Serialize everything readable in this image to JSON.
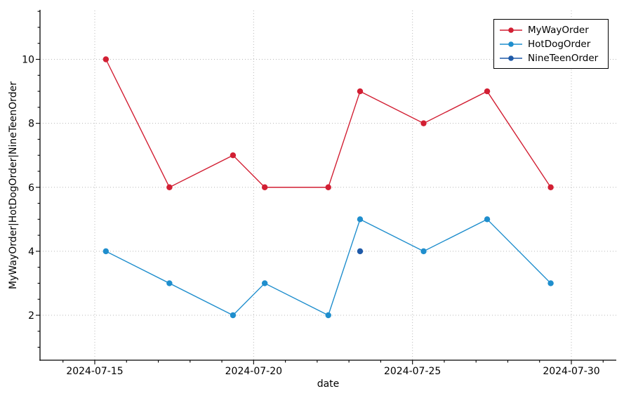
{
  "figure": {
    "xlabel": "date",
    "ylabel": "MyWayOrder|HotDogOrder|NineTeenOrder"
  },
  "legend": {
    "position": "upper right",
    "entries": [
      "MyWayOrder",
      "HotDogOrder",
      "NineTeenOrder"
    ]
  },
  "chart_data": {
    "type": "line",
    "title": "",
    "xlabel": "date",
    "ylabel": "MyWayOrder|HotDogOrder|NineTeenOrder",
    "x": [
      "2024-07-15",
      "2024-07-17",
      "2024-07-19",
      "2024-07-20",
      "2024-07-22",
      "2024-07-23",
      "2024-07-25",
      "2024-07-27",
      "2024-07-29"
    ],
    "series": [
      {
        "name": "MyWayOrder",
        "color": "#d21f33",
        "marker": "circle",
        "values": [
          10,
          6,
          7,
          6,
          6,
          9,
          8,
          9,
          6
        ]
      },
      {
        "name": "HotDogOrder",
        "color": "#1f8ecd",
        "marker": "circle",
        "values": [
          4,
          3,
          2,
          3,
          2,
          5,
          4,
          5,
          3
        ]
      },
      {
        "name": "NineTeenOrder",
        "color": "#1f5aa8",
        "marker": "circle",
        "values": [
          null,
          null,
          null,
          null,
          null,
          4,
          null,
          null,
          null
        ]
      }
    ],
    "x_tick_labels": [
      "2024-07-15",
      "2024-07-20",
      "2024-07-25",
      "2024-07-30"
    ],
    "y_tick_labels": [
      2,
      4,
      6,
      8,
      10
    ],
    "ylim": [
      0.6,
      11.53
    ],
    "xlim": [
      "2024-07-13",
      "2024-07-31"
    ],
    "grid": true,
    "grid_style": "dotted",
    "legend_position": "upper right",
    "colors": {
      "grid": "#b8b8b8",
      "axis": "#000000",
      "background": "#ffffff"
    }
  }
}
